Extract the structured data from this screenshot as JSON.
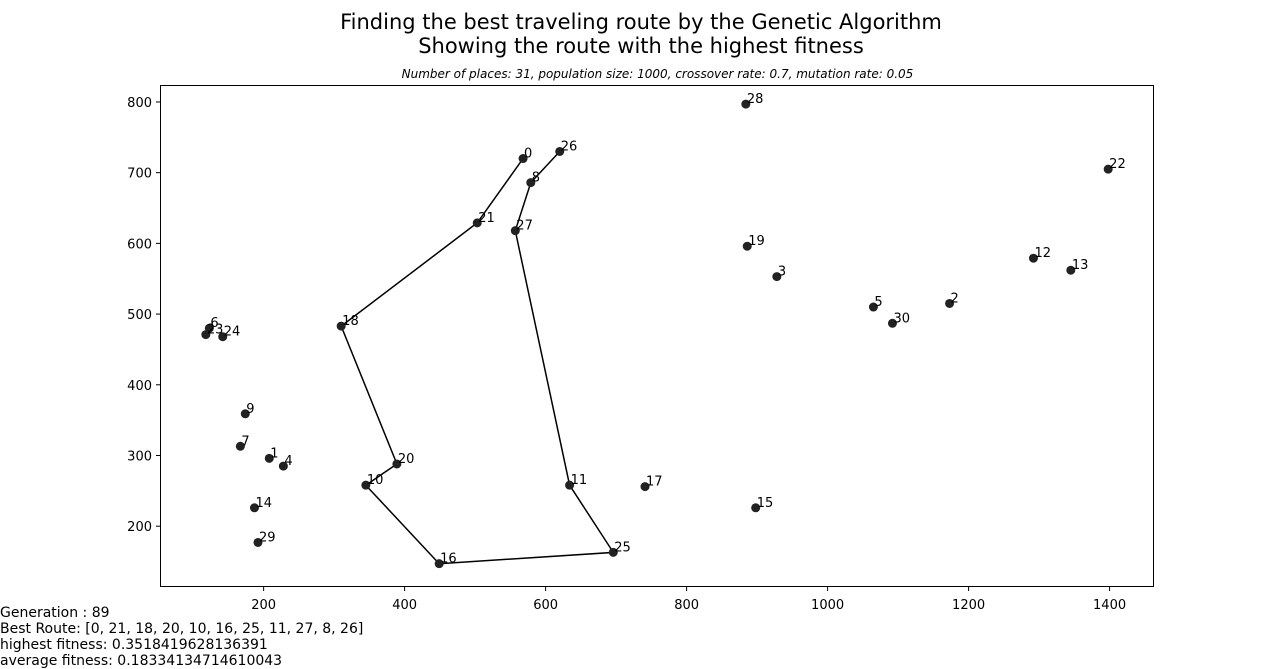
{
  "chart_data": {
    "type": "scatter",
    "title_line1": "Finding the best traveling route by the Genetic Algorithm",
    "title_line2": "Showing the route with the highest fitness",
    "subtitle": "Number of places: 31, population size: 1000, crossover rate: 0.7, mutation rate: 0.05",
    "xlim": [
      53,
      1463
    ],
    "ylim": [
      114,
      824
    ],
    "xticks": [
      200,
      400,
      600,
      800,
      1000,
      1200,
      1400
    ],
    "yticks": [
      200,
      300,
      400,
      500,
      600,
      700,
      800
    ],
    "marker_color": "#222222",
    "route_color": "#000000",
    "points": [
      {
        "label": "0",
        "x": 568,
        "y": 720
      },
      {
        "label": "1",
        "x": 208,
        "y": 296
      },
      {
        "label": "2",
        "x": 1173,
        "y": 515
      },
      {
        "label": "3",
        "x": 928,
        "y": 553
      },
      {
        "label": "4",
        "x": 228,
        "y": 285
      },
      {
        "label": "5",
        "x": 1065,
        "y": 510
      },
      {
        "label": "6",
        "x": 123,
        "y": 480
      },
      {
        "label": "7",
        "x": 167,
        "y": 313
      },
      {
        "label": "8",
        "x": 579,
        "y": 686
      },
      {
        "label": "9",
        "x": 174,
        "y": 359
      },
      {
        "label": "10",
        "x": 345,
        "y": 258
      },
      {
        "label": "11",
        "x": 634,
        "y": 258
      },
      {
        "label": "12",
        "x": 1292,
        "y": 579
      },
      {
        "label": "13",
        "x": 1345,
        "y": 562
      },
      {
        "label": "14",
        "x": 187,
        "y": 226
      },
      {
        "label": "15",
        "x": 898,
        "y": 226
      },
      {
        "label": "16",
        "x": 449,
        "y": 147
      },
      {
        "label": "17",
        "x": 741,
        "y": 256
      },
      {
        "label": "18",
        "x": 310,
        "y": 483
      },
      {
        "label": "19",
        "x": 886,
        "y": 596
      },
      {
        "label": "20",
        "x": 389,
        "y": 288
      },
      {
        "label": "21",
        "x": 503,
        "y": 629
      },
      {
        "label": "22",
        "x": 1398,
        "y": 705
      },
      {
        "label": "23",
        "x": 118,
        "y": 471
      },
      {
        "label": "24",
        "x": 142,
        "y": 468
      },
      {
        "label": "25",
        "x": 696,
        "y": 163
      },
      {
        "label": "26",
        "x": 620,
        "y": 730
      },
      {
        "label": "27",
        "x": 557,
        "y": 618
      },
      {
        "label": "28",
        "x": 884,
        "y": 797
      },
      {
        "label": "29",
        "x": 192,
        "y": 177
      },
      {
        "label": "30",
        "x": 1092,
        "y": 487
      }
    ],
    "route": [
      0,
      21,
      18,
      20,
      10,
      16,
      25,
      11,
      27,
      8,
      26
    ]
  },
  "info": {
    "generation": "Generation : 89",
    "best_route": "Best Route: [0, 21, 18, 20, 10, 16, 25, 11, 27, 8, 26]",
    "highest_fitness": "highest fitness: 0.3518419628136391",
    "average_fitness": "average fitness: 0.18334134714610043"
  }
}
